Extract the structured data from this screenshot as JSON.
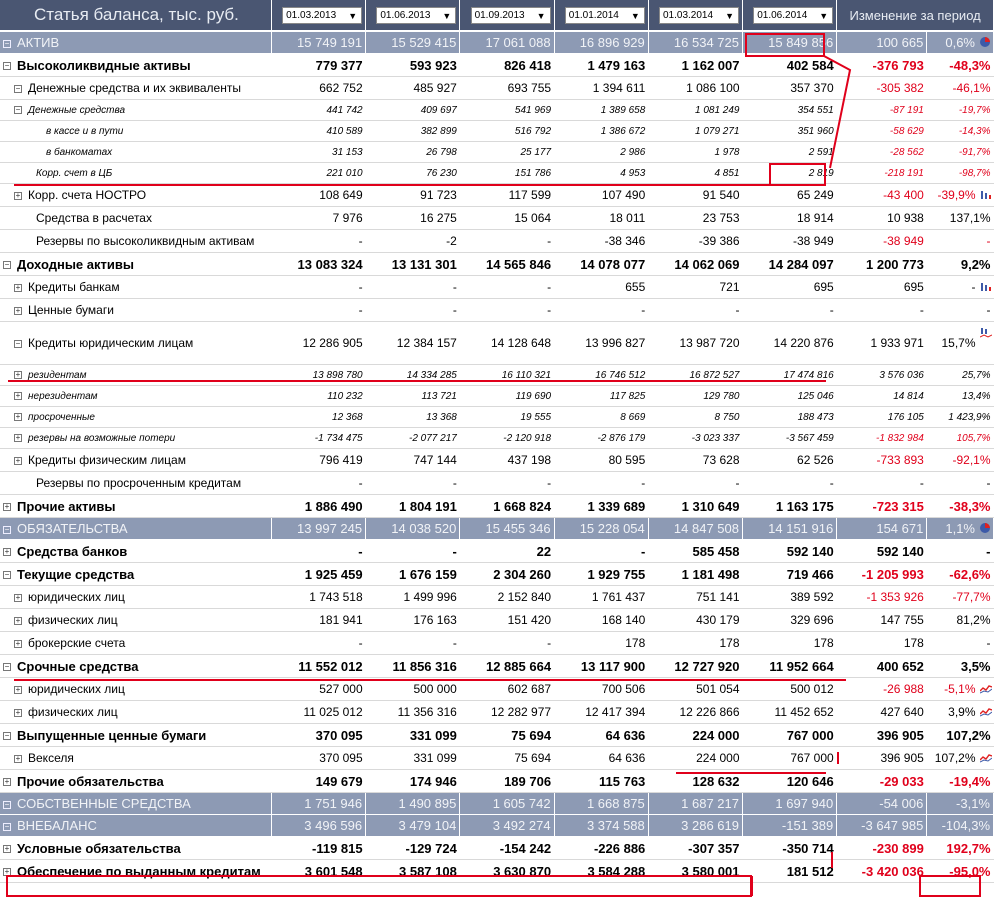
{
  "header": {
    "title": "Статья баланса, тыс. руб.",
    "dates": [
      "01.03.2013",
      "01.06.2013",
      "01.09.2013",
      "01.01.2014",
      "01.03.2014",
      "01.06.2014"
    ],
    "change_label": "Изменение за период"
  },
  "rows": [
    {
      "type": "sec",
      "label": "АКТИВ",
      "vals": [
        "15 749 191",
        "15 529 415",
        "17 061 088",
        "16 896 929",
        "16 534 725",
        "15 849 856"
      ],
      "chg": "100 665",
      "pct": "0,6%",
      "icon": "pie-chart-icon"
    },
    {
      "type": "b",
      "toggle": "−",
      "label": "Высоколиквидные активы",
      "vals": [
        "779 377",
        "593 923",
        "826 418",
        "1 479 163",
        "1 162 007",
        "402 584"
      ],
      "chg": "-376 793",
      "pct": "-48,3%",
      "neg": true
    },
    {
      "type": "n",
      "lvl": 1,
      "toggle": "−",
      "label": "Денежные средства и их эквиваленты",
      "vals": [
        "662 752",
        "485 927",
        "693 755",
        "1 394 611",
        "1 086 100",
        "357 370"
      ],
      "chg": "-305 382",
      "pct": "-46,1%",
      "neg": true
    },
    {
      "type": "it",
      "lvl": 0,
      "toggle": "−",
      "label": "Денежные средства",
      "vals": [
        "441 742",
        "409 697",
        "541 969",
        "1 389 658",
        "1 081 249",
        "354 551"
      ],
      "chg": "-87 191",
      "pct": "-19,7%",
      "neg": true
    },
    {
      "type": "it",
      "lvl": 4,
      "label": "в кассе и в пути",
      "vals": [
        "410 589",
        "382 899",
        "516 792",
        "1 386 672",
        "1 079 271",
        "351 960"
      ],
      "chg": "-58 629",
      "pct": "-14,3%",
      "neg": true
    },
    {
      "type": "it",
      "lvl": 4,
      "label": "в банкоматах",
      "vals": [
        "31 153",
        "26 798",
        "25 177",
        "2 986",
        "1 978",
        "2 591"
      ],
      "chg": "-28 562",
      "pct": "-91,7%",
      "neg": true
    },
    {
      "type": "it",
      "lvl": 2,
      "label": "Корр. счет в ЦБ",
      "vals": [
        "221 010",
        "76 230",
        "151 786",
        "4 953",
        "4 851",
        "2 819"
      ],
      "chg": "-218 191",
      "pct": "-98,7%",
      "neg": true
    },
    {
      "type": "n",
      "lvl": 1,
      "toggle": "+",
      "label": "Корр. счета НОСТРО",
      "vals": [
        "108 649",
        "91 723",
        "117 599",
        "107 490",
        "91 540",
        "65 249"
      ],
      "chg": "-43 400",
      "pct": "-39,9%",
      "neg": true,
      "icon": "bar-chart-icon"
    },
    {
      "type": "n",
      "lvl": 2,
      "label": "Средства в расчетах",
      "vals": [
        "7 976",
        "16 275",
        "15 064",
        "18 011",
        "23 753",
        "18 914"
      ],
      "chg": "10 938",
      "pct": "137,1%"
    },
    {
      "type": "n",
      "lvl": 2,
      "label": "Резервы по высоколиквидным активам",
      "vals": [
        "-",
        "-2",
        "-",
        "-38 346",
        "-39 386",
        "-38 949"
      ],
      "chg": "-38 949",
      "pct": "-",
      "neg": true
    },
    {
      "type": "b",
      "toggle": "−",
      "label": "Доходные активы",
      "vals": [
        "13 083 324",
        "13 131 301",
        "14 565 846",
        "14 078 077",
        "14 062 069",
        "14 284 097"
      ],
      "chg": "1 200 773",
      "pct": "9,2%"
    },
    {
      "type": "n",
      "lvl": 1,
      "toggle": "+",
      "label": "Кредиты банкам",
      "vals": [
        "-",
        "-",
        "-",
        "655",
        "721",
        "695"
      ],
      "chg": "695",
      "pct": "-",
      "icon": "bar-chart-icon"
    },
    {
      "type": "n",
      "lvl": 1,
      "toggle": "+",
      "label": "Ценные бумаги",
      "vals": [
        "-",
        "-",
        "-",
        "-",
        "-",
        "-"
      ],
      "chg": "-",
      "pct": "-"
    },
    {
      "type": "tall",
      "lvl": 1,
      "toggle": "−",
      "label": "Кредиты юридическим лицам",
      "vals": [
        "12 286 905",
        "12 384 157",
        "14 128 648",
        "13 996 827",
        "13 987 720",
        "14 220 876"
      ],
      "chg": "1 933 971",
      "pct": "15,7%",
      "icon": "bar-line-icon"
    },
    {
      "type": "it",
      "lvl": 0,
      "toggle": "+",
      "label": "резидентам",
      "vals": [
        "13 898 780",
        "14 334 285",
        "16 110 321",
        "16 746 512",
        "16 872 527",
        "17 474 816"
      ],
      "chg": "3 576 036",
      "pct": "25,7%"
    },
    {
      "type": "it",
      "lvl": 0,
      "toggle": "+",
      "label": "нерезидентам",
      "vals": [
        "110 232",
        "113 721",
        "119 690",
        "117 825",
        "129 780",
        "125 046"
      ],
      "chg": "14 814",
      "pct": "13,4%"
    },
    {
      "type": "it",
      "lvl": 0,
      "toggle": "+",
      "label": "просроченные",
      "vals": [
        "12 368",
        "13 368",
        "19 555",
        "8 669",
        "8 750",
        "188 473"
      ],
      "chg": "176 105",
      "pct": "1 423,9%"
    },
    {
      "type": "it",
      "lvl": 0,
      "toggle": "+",
      "label": "резервы на возможные потери",
      "vals": [
        "-1 734 475",
        "-2 077 217",
        "-2 120 918",
        "-2 876 179",
        "-3 023 337",
        "-3 567 459"
      ],
      "chg": "-1 832 984",
      "pct": "105,7%",
      "neg": true
    },
    {
      "type": "n",
      "lvl": 1,
      "toggle": "+",
      "label": "Кредиты физическим лицам",
      "vals": [
        "796 419",
        "747 144",
        "437 198",
        "80 595",
        "73 628",
        "62 526"
      ],
      "chg": "-733 893",
      "pct": "-92,1%",
      "neg": true
    },
    {
      "type": "n",
      "lvl": 2,
      "label": "Резервы по просроченным кредитам",
      "vals": [
        "-",
        "-",
        "-",
        "-",
        "-",
        "-"
      ],
      "chg": "-",
      "pct": "-"
    },
    {
      "type": "b",
      "toggle": "+",
      "label": "Прочие активы",
      "vals": [
        "1 886 490",
        "1 804 191",
        "1 668 824",
        "1 339 689",
        "1 310 649",
        "1 163 175"
      ],
      "chg": "-723 315",
      "pct": "-38,3%",
      "neg": true
    },
    {
      "type": "sec",
      "label": "ОБЯЗАТЕЛЬСТВА",
      "vals": [
        "13 997 245",
        "14 038 520",
        "15 455 346",
        "15 228 054",
        "14 847 508",
        "14 151 916"
      ],
      "chg": "154 671",
      "pct": "1,1%",
      "icon": "pie-chart-icon"
    },
    {
      "type": "b",
      "toggle": "+",
      "label": "Средства банков",
      "vals": [
        "-",
        "-",
        "22",
        "-",
        "585 458",
        "592 140"
      ],
      "chg": "592 140",
      "pct": "-"
    },
    {
      "type": "b",
      "toggle": "−",
      "label": "Текущие средства",
      "vals": [
        "1 925 459",
        "1 676 159",
        "2 304 260",
        "1 929 755",
        "1 181 498",
        "719 466"
      ],
      "chg": "-1 205 993",
      "pct": "-62,6%",
      "neg": true
    },
    {
      "type": "n",
      "lvl": 1,
      "toggle": "+",
      "label": "юридических лиц",
      "vals": [
        "1 743 518",
        "1 499 996",
        "2 152 840",
        "1 761 437",
        "751 141",
        "389 592"
      ],
      "chg": "-1 353 926",
      "pct": "-77,7%",
      "neg": true
    },
    {
      "type": "n",
      "lvl": 1,
      "toggle": "+",
      "label": "физических лиц",
      "vals": [
        "181 941",
        "176 163",
        "151 420",
        "168 140",
        "430 179",
        "329 696"
      ],
      "chg": "147 755",
      "pct": "81,2%"
    },
    {
      "type": "n",
      "lvl": 1,
      "toggle": "+",
      "label": "брокерские счета",
      "vals": [
        "-",
        "-",
        "-",
        "178",
        "178",
        "178"
      ],
      "chg": "178",
      "pct": "-"
    },
    {
      "type": "b",
      "toggle": "−",
      "label": "Срочные средства",
      "vals": [
        "11 552 012",
        "11 856 316",
        "12 885 664",
        "13 117 900",
        "12 727 920",
        "11 952 664"
      ],
      "chg": "400 652",
      "pct": "3,5%"
    },
    {
      "type": "n",
      "lvl": 1,
      "toggle": "+",
      "label": "юридических лиц",
      "vals": [
        "527 000",
        "500 000",
        "602 687",
        "700 506",
        "501 054",
        "500 012"
      ],
      "chg": "-26 988",
      "pct": "-5,1%",
      "neg": true,
      "icon": "line-chart-icon"
    },
    {
      "type": "n",
      "lvl": 1,
      "toggle": "+",
      "label": "физических лиц",
      "vals": [
        "11 025 012",
        "11 356 316",
        "12 282 977",
        "12 417 394",
        "12 226 866",
        "11 452 652"
      ],
      "chg": "427 640",
      "pct": "3,9%",
      "icon": "line-chart-icon"
    },
    {
      "type": "b",
      "toggle": "−",
      "label": "Выпущенные ценные бумаги",
      "vals": [
        "370 095",
        "331 099",
        "75 694",
        "64 636",
        "224 000",
        "767 000"
      ],
      "chg": "396 905",
      "pct": "107,2%"
    },
    {
      "type": "n",
      "lvl": 1,
      "toggle": "+",
      "label": "Векселя",
      "vals": [
        "370 095",
        "331 099",
        "75 694",
        "64 636",
        "224 000",
        "767 000"
      ],
      "chg": "396 905",
      "pct": "107,2%",
      "icon": "line-chart-icon"
    },
    {
      "type": "b",
      "toggle": "+",
      "label": "Прочие обязательства",
      "vals": [
        "149 679",
        "174 946",
        "189 706",
        "115 763",
        "128 632",
        "120 646"
      ],
      "chg": "-29 033",
      "pct": "-19,4%",
      "neg": true
    },
    {
      "type": "sec",
      "label": "СОБСТВЕННЫЕ СРЕДСТВА",
      "vals": [
        "1 751 946",
        "1 490 895",
        "1 605 742",
        "1 668 875",
        "1 687 217",
        "1 697 940"
      ],
      "chg": "-54 006",
      "pct": "-3,1%"
    },
    {
      "type": "sec",
      "label": "ВНЕБАЛАНС",
      "vals": [
        "3 496 596",
        "3 479 104",
        "3 492 274",
        "3 374 588",
        "3 286 619",
        "-151 389"
      ],
      "chg": "-3 647 985",
      "pct": "-104,3%"
    },
    {
      "type": "b",
      "toggle": "+",
      "label": "Условные обязательства",
      "vals": [
        "-119 815",
        "-129 724",
        "-154 242",
        "-226 886",
        "-307 357",
        "-350 714"
      ],
      "chg": "-230 899",
      "pct": "192,7%",
      "neg": true
    },
    {
      "type": "b",
      "toggle": "+",
      "label": "Обеспечение по выданным кредитам",
      "vals": [
        "3 601 548",
        "3 587 108",
        "3 630 870",
        "3 584 288",
        "3 580 001",
        "181 512"
      ],
      "chg": "-3 420 036",
      "pct": "-95,0%",
      "neg": true
    }
  ],
  "colors": {
    "header": "#4a5672",
    "section": "#8d9ab4",
    "negative": "#e0001b",
    "annotation": "#e0001b"
  }
}
